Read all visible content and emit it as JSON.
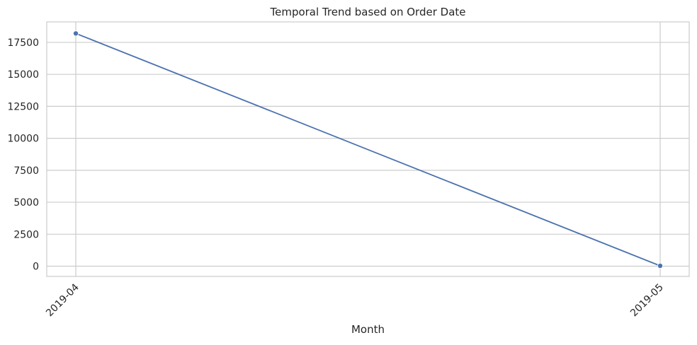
{
  "chart_data": {
    "type": "line",
    "title": "Temporal Trend based on Order Date",
    "xlabel": "Month",
    "ylabel": "",
    "categories": [
      "2019-04",
      "2019-05"
    ],
    "series": [
      {
        "values": [
          18200,
          30
        ]
      }
    ],
    "ylim": [
      -800,
      19100
    ],
    "yticks": [
      0,
      2500,
      5000,
      7500,
      10000,
      12500,
      15000,
      17500
    ],
    "xtick_rotation": 45,
    "grid": true,
    "legend": "none",
    "colors": {
      "line": "#4c72b0",
      "grid": "#cccccc",
      "spine": "#cccccc"
    }
  }
}
